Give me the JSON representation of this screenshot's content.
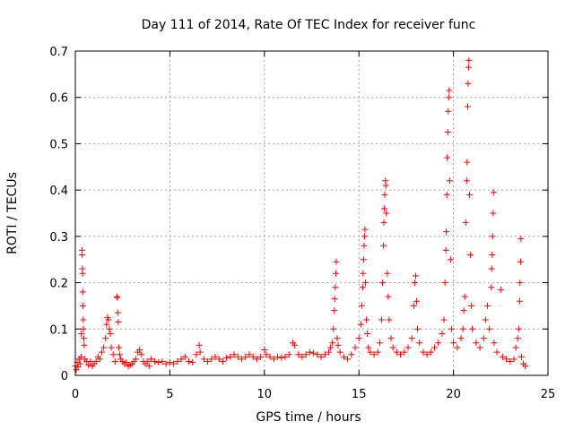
{
  "chart_data": {
    "type": "scatter",
    "title": "Day 111 of 2014, Rate Of TEC Index for receiver func",
    "xlabel": "GPS time / hours",
    "ylabel": "ROTI / TECUs",
    "xlim": [
      0,
      25
    ],
    "ylim": [
      0,
      0.7
    ],
    "xticks": [
      "0",
      "5",
      "10",
      "15",
      "20",
      "25"
    ],
    "yticks": [
      "0",
      "0.1",
      "0.2",
      "0.3",
      "0.4",
      "0.5",
      "0.6",
      "0.7"
    ],
    "grid": true,
    "marker": "plus",
    "color": "#ff0000",
    "series": [
      {
        "name": "ROTI",
        "points": [
          [
            0.0,
            0.02
          ],
          [
            0.05,
            0.012
          ],
          [
            0.1,
            0.028
          ],
          [
            0.15,
            0.018
          ],
          [
            0.2,
            0.035
          ],
          [
            0.25,
            0.025
          ],
          [
            0.3,
            0.04
          ],
          [
            0.32,
            0.09
          ],
          [
            0.35,
            0.27
          ],
          [
            0.36,
            0.26
          ],
          [
            0.37,
            0.23
          ],
          [
            0.38,
            0.22
          ],
          [
            0.39,
            0.18
          ],
          [
            0.4,
            0.15
          ],
          [
            0.42,
            0.12
          ],
          [
            0.43,
            0.1
          ],
          [
            0.45,
            0.08
          ],
          [
            0.47,
            0.065
          ],
          [
            0.5,
            0.035
          ],
          [
            0.6,
            0.03
          ],
          [
            0.7,
            0.022
          ],
          [
            0.8,
            0.03
          ],
          [
            0.9,
            0.02
          ],
          [
            1.0,
            0.025
          ],
          [
            1.1,
            0.03
          ],
          [
            1.2,
            0.04
          ],
          [
            1.3,
            0.035
          ],
          [
            1.4,
            0.05
          ],
          [
            1.5,
            0.06
          ],
          [
            1.6,
            0.08
          ],
          [
            1.65,
            0.11
          ],
          [
            1.7,
            0.125
          ],
          [
            1.75,
            0.12
          ],
          [
            1.8,
            0.1
          ],
          [
            1.85,
            0.09
          ],
          [
            1.9,
            0.06
          ],
          [
            2.0,
            0.045
          ],
          [
            2.1,
            0.03
          ],
          [
            2.2,
            0.17
          ],
          [
            2.22,
            0.168
          ],
          [
            2.25,
            0.135
          ],
          [
            2.27,
            0.115
          ],
          [
            2.3,
            0.06
          ],
          [
            2.35,
            0.045
          ],
          [
            2.4,
            0.035
          ],
          [
            2.5,
            0.03
          ],
          [
            2.6,
            0.025
          ],
          [
            2.7,
            0.028
          ],
          [
            2.8,
            0.02
          ],
          [
            2.9,
            0.022
          ],
          [
            3.0,
            0.025
          ],
          [
            3.1,
            0.03
          ],
          [
            3.2,
            0.035
          ],
          [
            3.3,
            0.05
          ],
          [
            3.4,
            0.055
          ],
          [
            3.5,
            0.045
          ],
          [
            3.6,
            0.03
          ],
          [
            3.7,
            0.025
          ],
          [
            3.8,
            0.03
          ],
          [
            3.9,
            0.02
          ],
          [
            4.0,
            0.035
          ],
          [
            4.2,
            0.03
          ],
          [
            4.4,
            0.028
          ],
          [
            4.6,
            0.03
          ],
          [
            4.8,
            0.025
          ],
          [
            5.0,
            0.028
          ],
          [
            5.2,
            0.025
          ],
          [
            5.4,
            0.03
          ],
          [
            5.6,
            0.035
          ],
          [
            5.8,
            0.04
          ],
          [
            6.0,
            0.03
          ],
          [
            6.2,
            0.028
          ],
          [
            6.4,
            0.045
          ],
          [
            6.55,
            0.065
          ],
          [
            6.6,
            0.05
          ],
          [
            6.8,
            0.035
          ],
          [
            7.0,
            0.03
          ],
          [
            7.2,
            0.035
          ],
          [
            7.4,
            0.04
          ],
          [
            7.6,
            0.035
          ],
          [
            7.8,
            0.03
          ],
          [
            8.0,
            0.038
          ],
          [
            8.2,
            0.04
          ],
          [
            8.4,
            0.045
          ],
          [
            8.6,
            0.04
          ],
          [
            8.8,
            0.035
          ],
          [
            9.0,
            0.04
          ],
          [
            9.2,
            0.045
          ],
          [
            9.4,
            0.04
          ],
          [
            9.6,
            0.035
          ],
          [
            9.8,
            0.04
          ],
          [
            10.0,
            0.055
          ],
          [
            10.1,
            0.045
          ],
          [
            10.3,
            0.04
          ],
          [
            10.5,
            0.035
          ],
          [
            10.7,
            0.04
          ],
          [
            10.9,
            0.038
          ],
          [
            11.1,
            0.04
          ],
          [
            11.3,
            0.045
          ],
          [
            11.5,
            0.07
          ],
          [
            11.6,
            0.065
          ],
          [
            11.8,
            0.045
          ],
          [
            12.0,
            0.04
          ],
          [
            12.2,
            0.045
          ],
          [
            12.4,
            0.05
          ],
          [
            12.6,
            0.048
          ],
          [
            12.8,
            0.045
          ],
          [
            13.0,
            0.04
          ],
          [
            13.2,
            0.045
          ],
          [
            13.4,
            0.05
          ],
          [
            13.5,
            0.06
          ],
          [
            13.6,
            0.07
          ],
          [
            13.65,
            0.1
          ],
          [
            13.7,
            0.14
          ],
          [
            13.72,
            0.165
          ],
          [
            13.75,
            0.19
          ],
          [
            13.78,
            0.22
          ],
          [
            13.8,
            0.245
          ],
          [
            13.85,
            0.08
          ],
          [
            13.9,
            0.065
          ],
          [
            14.0,
            0.05
          ],
          [
            14.2,
            0.04
          ],
          [
            14.4,
            0.035
          ],
          [
            14.6,
            0.045
          ],
          [
            14.8,
            0.06
          ],
          [
            15.0,
            0.08
          ],
          [
            15.1,
            0.11
          ],
          [
            15.15,
            0.15
          ],
          [
            15.2,
            0.19
          ],
          [
            15.22,
            0.22
          ],
          [
            15.25,
            0.25
          ],
          [
            15.27,
            0.28
          ],
          [
            15.3,
            0.3
          ],
          [
            15.32,
            0.315
          ],
          [
            15.35,
            0.2
          ],
          [
            15.4,
            0.12
          ],
          [
            15.45,
            0.09
          ],
          [
            15.5,
            0.06
          ],
          [
            15.6,
            0.05
          ],
          [
            15.8,
            0.045
          ],
          [
            16.0,
            0.05
          ],
          [
            16.1,
            0.07
          ],
          [
            16.2,
            0.12
          ],
          [
            16.25,
            0.2
          ],
          [
            16.3,
            0.28
          ],
          [
            16.32,
            0.33
          ],
          [
            16.35,
            0.36
          ],
          [
            16.37,
            0.39
          ],
          [
            16.4,
            0.42
          ],
          [
            16.42,
            0.41
          ],
          [
            16.45,
            0.35
          ],
          [
            16.5,
            0.22
          ],
          [
            16.55,
            0.17
          ],
          [
            16.6,
            0.12
          ],
          [
            16.7,
            0.08
          ],
          [
            16.8,
            0.06
          ],
          [
            17.0,
            0.05
          ],
          [
            17.2,
            0.045
          ],
          [
            17.4,
            0.05
          ],
          [
            17.6,
            0.06
          ],
          [
            17.8,
            0.08
          ],
          [
            17.9,
            0.15
          ],
          [
            17.95,
            0.2
          ],
          [
            18.0,
            0.215
          ],
          [
            18.05,
            0.16
          ],
          [
            18.1,
            0.1
          ],
          [
            18.2,
            0.07
          ],
          [
            18.4,
            0.05
          ],
          [
            18.6,
            0.045
          ],
          [
            18.8,
            0.05
          ],
          [
            19.0,
            0.06
          ],
          [
            19.2,
            0.07
          ],
          [
            19.4,
            0.09
          ],
          [
            19.5,
            0.12
          ],
          [
            19.55,
            0.2
          ],
          [
            19.6,
            0.27
          ],
          [
            19.62,
            0.31
          ],
          [
            19.65,
            0.39
          ],
          [
            19.67,
            0.47
          ],
          [
            19.7,
            0.525
          ],
          [
            19.72,
            0.57
          ],
          [
            19.75,
            0.6
          ],
          [
            19.77,
            0.615
          ],
          [
            19.8,
            0.42
          ],
          [
            19.85,
            0.25
          ],
          [
            19.9,
            0.1
          ],
          [
            20.0,
            0.07
          ],
          [
            20.2,
            0.06
          ],
          [
            20.4,
            0.08
          ],
          [
            20.5,
            0.1
          ],
          [
            20.55,
            0.14
          ],
          [
            20.6,
            0.17
          ],
          [
            20.65,
            0.33
          ],
          [
            20.7,
            0.42
          ],
          [
            20.72,
            0.46
          ],
          [
            20.75,
            0.58
          ],
          [
            20.77,
            0.63
          ],
          [
            20.8,
            0.665
          ],
          [
            20.82,
            0.68
          ],
          [
            20.85,
            0.39
          ],
          [
            20.9,
            0.26
          ],
          [
            20.95,
            0.15
          ],
          [
            21.0,
            0.1
          ],
          [
            21.2,
            0.07
          ],
          [
            21.4,
            0.06
          ],
          [
            21.6,
            0.08
          ],
          [
            21.7,
            0.12
          ],
          [
            21.8,
            0.15
          ],
          [
            21.9,
            0.1
          ],
          [
            22.0,
            0.19
          ],
          [
            22.02,
            0.23
          ],
          [
            22.05,
            0.26
          ],
          [
            22.07,
            0.3
          ],
          [
            22.1,
            0.35
          ],
          [
            22.12,
            0.395
          ],
          [
            22.15,
            0.07
          ],
          [
            22.3,
            0.05
          ],
          [
            22.5,
            0.185
          ],
          [
            22.6,
            0.04
          ],
          [
            22.8,
            0.035
          ],
          [
            23.0,
            0.03
          ],
          [
            23.2,
            0.035
          ],
          [
            23.3,
            0.06
          ],
          [
            23.4,
            0.08
          ],
          [
            23.45,
            0.1
          ],
          [
            23.5,
            0.16
          ],
          [
            23.52,
            0.2
          ],
          [
            23.55,
            0.245
          ],
          [
            23.57,
            0.295
          ],
          [
            23.6,
            0.04
          ],
          [
            23.7,
            0.025
          ],
          [
            23.8,
            0.02
          ]
        ]
      }
    ]
  }
}
